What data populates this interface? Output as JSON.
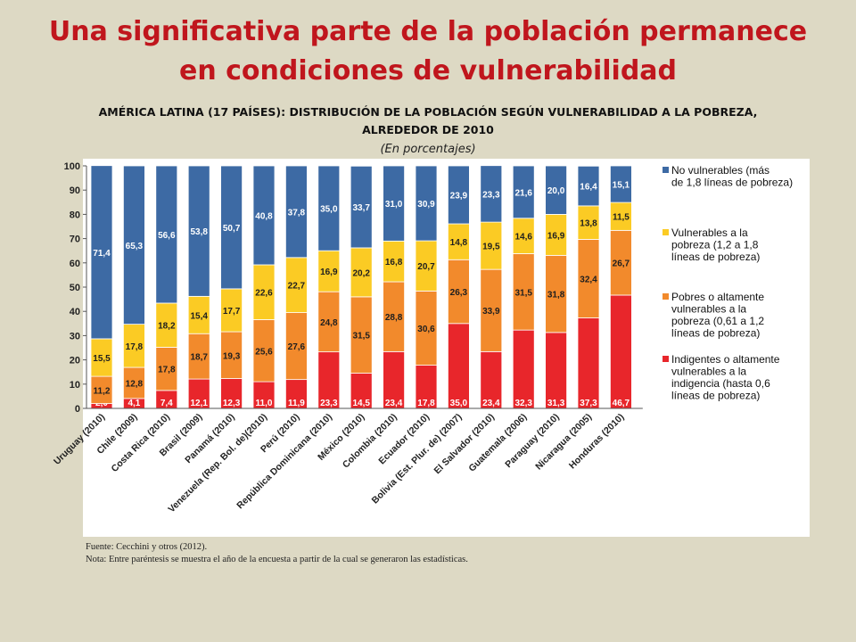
{
  "slide": {
    "title_line1": "Una significativa parte de la población permanece",
    "title_line2": "en condiciones de vulnerabilidad"
  },
  "colors": {
    "background": "#ddd9c4",
    "title": "#c0161d",
    "indigentes": "#e8262b",
    "pobres": "#f28a2c",
    "vulnerables": "#fbcb24",
    "no_vulnerables": "#3d6aa4"
  },
  "chart_data": {
    "type": "bar",
    "stacked": true,
    "title_line1": "AMÉRICA LATINA (17 PAÍSES): DISTRIBUCIÓN DE LA POBLACIÓN SEGÚN VULNERABILIDAD A LA POBREZA,",
    "title_line2": "ALREDEDOR DE 2010",
    "subtitle": "(En porcentajes)",
    "ylim": [
      0,
      100
    ],
    "yticks": [
      "0",
      "10",
      "20",
      "30",
      "40",
      "50",
      "60",
      "70",
      "80",
      "90",
      "100"
    ],
    "grid": false,
    "legend_position": "right",
    "categories": [
      "Uruguay (2010)",
      "Chile (2009)",
      "Costa Rica (2010)",
      "Brasil (2009)",
      "Panamá (2010)",
      "Venezuela (Rep. Bol. de)(2010)",
      "Perú (2010)",
      "República Dominicana (2010)",
      "México (2010)",
      "Colombia (2010)",
      "Ecuador (2010)",
      "Bolivia (Est. Plur. de) (2007)",
      "El Salvador (2010)",
      "Guatemala (2006)",
      "Paraguay (2010)",
      "Nicaragua (2005)",
      "Honduras (2010)"
    ],
    "series": [
      {
        "name": "Indigentes o altamente vulnerables a la indigencia (hasta 0,6 líneas de pobreza)",
        "legend_lines": [
          "Indigentes o altamente",
          "vulnerables a la",
          "indigencia (hasta 0,6",
          " líneas de pobreza)"
        ],
        "color_key": "indigentes",
        "values": [
          2.0,
          4.1,
          7.4,
          12.1,
          12.3,
          11.0,
          11.9,
          23.3,
          14.5,
          23.4,
          17.8,
          35.0,
          23.4,
          32.3,
          31.3,
          37.3,
          46.7
        ],
        "labels": [
          "2,0",
          "4,1",
          "7,4",
          "12,1",
          "12,3",
          "11,0",
          "11,9",
          "23,3",
          "14,5",
          "23,4",
          "17,8",
          "35,0",
          "23,4",
          "32,3",
          "31,3",
          "37,3",
          "46,7"
        ]
      },
      {
        "name": "Pobres o altamente vulnerables a la pobreza (0,61 a 1,2 líneas de pobreza)",
        "legend_lines": [
          "Pobres o altamente",
          "vulnerables a la",
          "pobreza (0,61 a 1,2",
          "líneas de pobreza)"
        ],
        "color_key": "pobres",
        "values": [
          11.2,
          12.8,
          17.8,
          18.7,
          19.3,
          25.6,
          27.6,
          24.8,
          31.5,
          28.8,
          30.6,
          26.3,
          33.9,
          31.5,
          31.8,
          32.4,
          26.7
        ],
        "labels": [
          "11,2",
          "12,8",
          "17,8",
          "18,7",
          "19,3",
          "25,6",
          "27,6",
          "24,8",
          "31,5",
          "28,8",
          "30,6",
          "26,3",
          "33,9",
          "31,5",
          "31,8",
          "32,4",
          "26,7"
        ]
      },
      {
        "name": "Vulnerables a la pobreza (1,2 a 1,8 líneas de pobreza)",
        "legend_lines": [
          "Vulnerables a la",
          "pobreza (1,2 a 1,8",
          "líneas de pobreza)"
        ],
        "color_key": "vulnerables",
        "values": [
          15.5,
          17.8,
          18.2,
          15.4,
          17.7,
          22.6,
          22.7,
          16.9,
          20.2,
          16.8,
          20.7,
          14.8,
          19.5,
          14.6,
          16.9,
          13.8,
          11.5
        ],
        "labels": [
          "15,5",
          "17,8",
          "18,2",
          "15,4",
          "17,7",
          "22,6",
          "22,7",
          "16,9",
          "20,2",
          "16,8",
          "20,7",
          "14,8",
          "19,5",
          "14,6",
          "16,9",
          "13,8",
          "11,5"
        ]
      },
      {
        "name": "No vulnerables (más de 1,8 líneas de pobreza)",
        "legend_lines": [
          "No vulnerables (más",
          "de 1,8 líneas de pobreza)"
        ],
        "color_key": "no_vulnerables",
        "values": [
          71.4,
          65.3,
          56.6,
          53.8,
          50.7,
          40.8,
          37.8,
          35.0,
          33.7,
          31.0,
          30.9,
          23.9,
          23.3,
          21.6,
          20.0,
          16.4,
          15.1
        ],
        "labels": [
          "71,4",
          "65,3",
          "56,6",
          "53,8",
          "50,7",
          "40,8",
          "37,8",
          "35,0",
          "33,7",
          "31,0",
          "30,9",
          "23,9",
          "23,3",
          "21,6",
          "20,0",
          "16,4",
          "15,1"
        ]
      }
    ]
  },
  "footer": {
    "source": "Fuente: Cecchini y otros (2012).",
    "note": "Nota: Entre paréntesis se muestra el año de la encuesta a partir de la cual se generaron las estadísticas."
  }
}
